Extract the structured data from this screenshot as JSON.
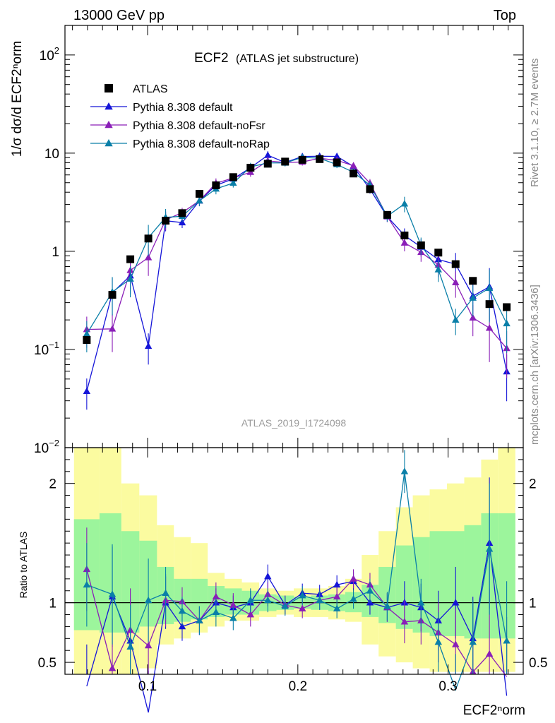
{
  "chart_data": {
    "type": "line",
    "header_left": "13000 GeV pp",
    "header_right": "Top",
    "title": "ECF2",
    "subtitle": "(ATLAS jet substructure)",
    "analysis_id": "ATLAS_2019_I1724098",
    "side_label_top": "Rivet 3.1.10, ≥ 2.7M events",
    "side_label_bottom": "mcplots.cern.ch [arXiv:1306.3436]",
    "xlabel": "ECF2ⁿorm",
    "ylabel_main": "1/σ dσ/d ECF2ⁿorm",
    "ylabel_ratio": "Ratio to ATLAS",
    "main_log_scale": true,
    "main_ylim": [
      0.01,
      200
    ],
    "ratio_ylim": [
      0.4,
      2.3
    ],
    "xlim": [
      0.045,
      0.35
    ],
    "x_ticks": [
      "0.1",
      "0.2",
      "0.3"
    ],
    "x_tick_values": [
      0.1,
      0.2,
      0.3
    ],
    "main_y_ticks": [
      {
        "v": 0.01,
        "base": "10",
        "exp": "−2"
      },
      {
        "v": 0.1,
        "base": "10",
        "exp": "−1"
      },
      {
        "v": 1,
        "base": "1",
        "exp": ""
      },
      {
        "v": 10,
        "base": "10",
        "exp": ""
      },
      {
        "v": 100,
        "base": "10",
        "exp": "2"
      }
    ],
    "ratio_y_ticks": [
      {
        "v": 0.5,
        "label": "0.5"
      },
      {
        "v": 1,
        "label": "1"
      },
      {
        "v": 2,
        "label": "2"
      }
    ],
    "legend_placement": "top-left",
    "x": [
      0.0595,
      0.0765,
      0.0885,
      0.1005,
      0.112,
      0.123,
      0.1345,
      0.1455,
      0.157,
      0.1685,
      0.18,
      0.1915,
      0.203,
      0.2145,
      0.226,
      0.237,
      0.248,
      0.2595,
      0.271,
      0.282,
      0.2935,
      0.305,
      0.3165,
      0.3275,
      0.339
    ],
    "data": {
      "name": "ATLAS",
      "y": [
        0.125,
        0.36,
        0.83,
        1.35,
        2.05,
        2.45,
        3.85,
        4.7,
        5.7,
        7.1,
        7.8,
        8.2,
        8.55,
        8.7,
        8.05,
        6.2,
        4.3,
        2.35,
        1.45,
        1.15,
        0.97,
        0.74,
        0.5,
        0.29,
        0.27
      ],
      "band_inner": [
        [
          0.77,
          1.7
        ],
        [
          0.75,
          1.75
        ],
        [
          0.75,
          1.6
        ],
        [
          0.8,
          1.52
        ],
        [
          0.82,
          1.3
        ],
        [
          0.84,
          1.2
        ],
        [
          0.86,
          1.2
        ],
        [
          0.88,
          1.14
        ],
        [
          0.9,
          1.12
        ],
        [
          0.9,
          1.1
        ],
        [
          0.93,
          1.07
        ],
        [
          0.94,
          1.06
        ],
        [
          0.95,
          1.05
        ],
        [
          0.94,
          1.06
        ],
        [
          0.93,
          1.07
        ],
        [
          0.92,
          1.09
        ],
        [
          0.88,
          1.15
        ],
        [
          0.83,
          1.3
        ],
        [
          0.78,
          1.48
        ],
        [
          0.75,
          1.55
        ],
        [
          0.72,
          1.6
        ],
        [
          0.72,
          1.6
        ],
        [
          0.7,
          1.65
        ],
        [
          0.7,
          1.75
        ],
        [
          0.7,
          1.75
        ]
      ],
      "band_outer": [
        [
          0.4,
          2.3
        ],
        [
          0.4,
          2.3
        ],
        [
          0.4,
          2.0
        ],
        [
          0.45,
          1.9
        ],
        [
          0.65,
          1.65
        ],
        [
          0.7,
          1.55
        ],
        [
          0.75,
          1.5
        ],
        [
          0.8,
          1.25
        ],
        [
          0.85,
          1.2
        ],
        [
          0.85,
          1.17
        ],
        [
          0.88,
          1.12
        ],
        [
          0.9,
          1.1
        ],
        [
          0.88,
          1.12
        ],
        [
          0.88,
          1.12
        ],
        [
          0.86,
          1.14
        ],
        [
          0.84,
          1.2
        ],
        [
          0.65,
          1.4
        ],
        [
          0.55,
          1.6
        ],
        [
          0.5,
          1.8
        ],
        [
          0.45,
          1.9
        ],
        [
          0.42,
          1.95
        ],
        [
          0.42,
          2.0
        ],
        [
          0.42,
          2.05
        ],
        [
          0.42,
          2.2
        ],
        [
          0.42,
          2.3
        ]
      ]
    },
    "series": [
      {
        "name": "Pythia 8.308 default",
        "color": "#1515d8",
        "ratio": [
          0.3,
          1.05,
          0.68,
          0.08,
          1.0,
          0.8,
          0.85,
          1.0,
          0.96,
          1.0,
          1.22,
          0.98,
          1.08,
          1.07,
          1.15,
          1.18,
          1.0,
          0.96,
          1.0,
          0.96,
          0.85,
          1.0,
          0.7,
          1.5,
          0.22
        ],
        "ratio_err": [
          0.35,
          0.42,
          0.35,
          0.35,
          0.22,
          0.12,
          0.12,
          0.12,
          0.1,
          0.1,
          0.1,
          0.08,
          0.08,
          0.08,
          0.08,
          0.08,
          0.1,
          0.12,
          0.18,
          0.2,
          0.25,
          0.3,
          0.35,
          0.55,
          0.5
        ]
      },
      {
        "name": "Pythia 8.308 default-noFsr",
        "color": "#8a1eb8",
        "ratio": [
          1.28,
          0.45,
          0.77,
          0.64,
          1.02,
          1.01,
          0.85,
          1.05,
          0.98,
          0.9,
          1.07,
          0.98,
          0.95,
          1.02,
          1.05,
          1.2,
          1.15,
          0.96,
          0.84,
          0.85,
          0.75,
          0.65,
          0.42,
          0.57,
          0.38
        ]
      },
      {
        "name": "Pythia 8.308 default-noRap",
        "color": "#0a7fa8",
        "ratio": [
          1.15,
          1.07,
          0.63,
          1.02,
          1.08,
          0.93,
          0.85,
          0.92,
          0.87,
          1.02,
          1.02,
          0.97,
          1.06,
          1.02,
          0.95,
          1.03,
          1.1,
          0.97,
          2.1,
          1.0,
          0.67,
          0.27,
          0.67,
          1.45,
          0.68
        ]
      }
    ]
  }
}
